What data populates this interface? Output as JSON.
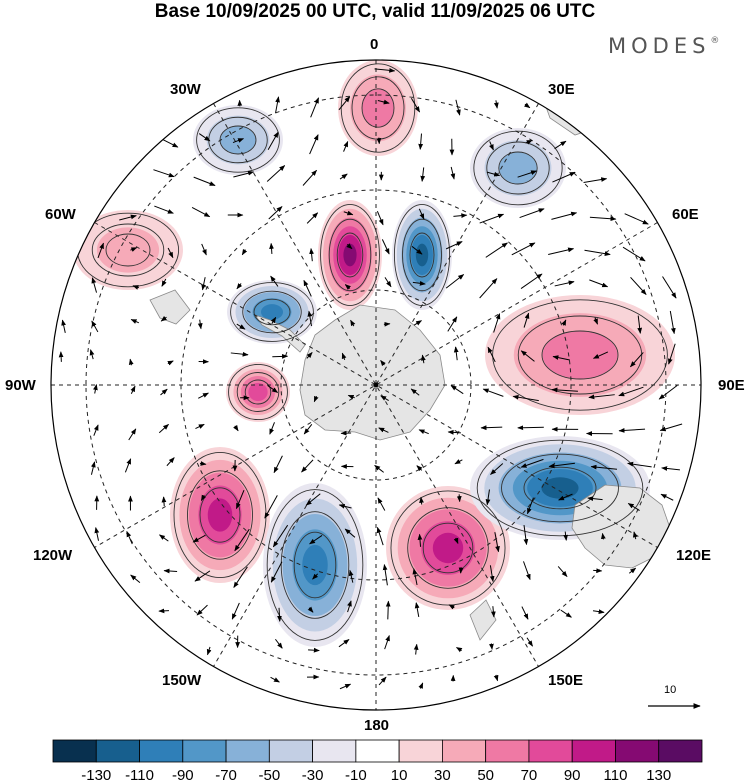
{
  "title": "Base 10/09/2025 00 UTC, valid 11/09/2025 06 UTC",
  "brand": {
    "name": "MODES",
    "mark": "®"
  },
  "map": {
    "projection": "south-polar-stereographic",
    "longitude_labels": {
      "top": "0",
      "top_right": "30E",
      "right_upper": "60E",
      "right": "90E",
      "right_lower": "120E",
      "bottom_right": "150E",
      "bottom": "180",
      "bottom_left": "150W",
      "left_lower": "120W",
      "left": "90W",
      "left_upper": "60W",
      "top_left": "30W"
    },
    "wind_reference": {
      "value": "10"
    },
    "anomaly_centers": [
      {
        "sign": "positive",
        "magnitude": 60,
        "near": "0E, upper"
      },
      {
        "sign": "positive",
        "magnitude": 110,
        "near": "0E, lower"
      },
      {
        "sign": "negative",
        "magnitude": -110,
        "near": "30E, lower"
      },
      {
        "sign": "negative",
        "magnitude": -50,
        "near": "20W"
      },
      {
        "sign": "negative",
        "magnitude": -50,
        "near": "30E, upper"
      },
      {
        "sign": "positive",
        "magnitude": 30,
        "near": "60W"
      },
      {
        "sign": "negative",
        "magnitude": -90,
        "near": "60W, inner"
      },
      {
        "sign": "positive",
        "magnitude": 50,
        "near": "90E"
      },
      {
        "sign": "positive",
        "magnitude": 70,
        "near": "100W, inner"
      },
      {
        "sign": "positive",
        "magnitude": 90,
        "near": "120W"
      },
      {
        "sign": "negative",
        "magnitude": -90,
        "near": "160W"
      },
      {
        "sign": "positive",
        "magnitude": 90,
        "near": "160E"
      },
      {
        "sign": "negative",
        "magnitude": -110,
        "near": "120E"
      }
    ]
  },
  "colorbar": {
    "ticks": [
      "-130",
      "-110",
      "-90",
      "-70",
      "-50",
      "-30",
      "-10",
      "10",
      "30",
      "50",
      "70",
      "90",
      "110",
      "130"
    ],
    "colors": [
      "#08304f",
      "#175f8e",
      "#2f7fb8",
      "#5297c8",
      "#87b1d8",
      "#c3cfe4",
      "#e8e6f0",
      "#ffffff",
      "#f8d4d8",
      "#f6aab8",
      "#ef79a4",
      "#e24a9a",
      "#c11a88",
      "#850a72",
      "#5a0c63"
    ]
  }
}
